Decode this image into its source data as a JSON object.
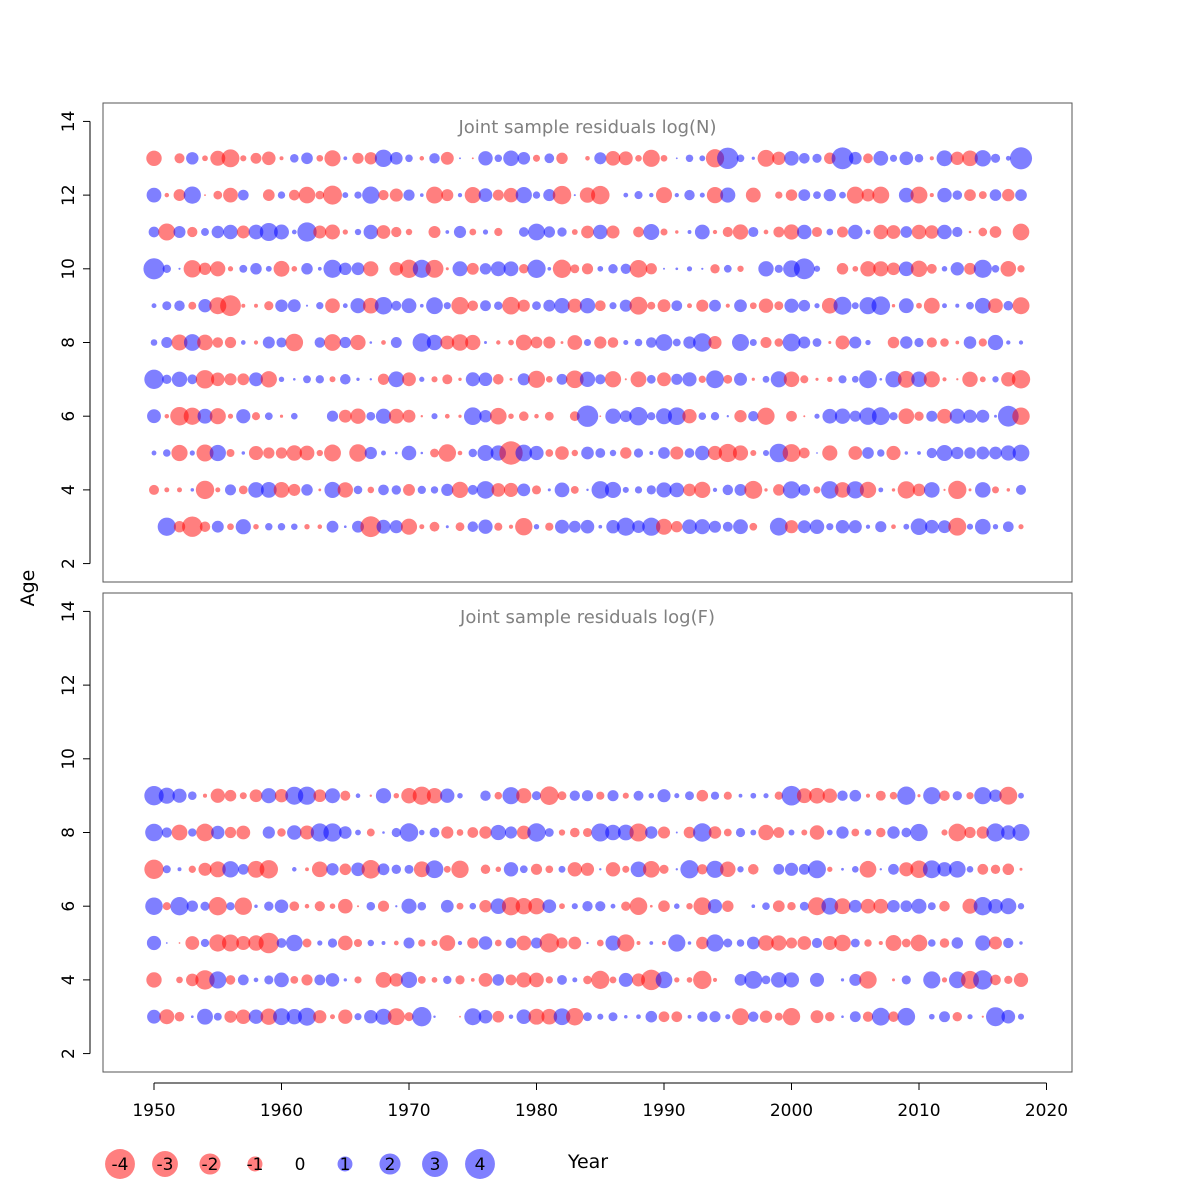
{
  "chart_data": [
    {
      "type": "scatter",
      "variant": "bubble",
      "title": "Joint sample residuals log(N)",
      "xlabel": "",
      "ylabel": "",
      "xlim": [
        1946,
        2022
      ],
      "ylim": [
        1.5,
        14.5
      ],
      "x_ticks": [
        1950,
        1960,
        1970,
        1980,
        1990,
        2000,
        2010,
        2020
      ],
      "y_ticks": [
        2,
        4,
        6,
        8,
        10,
        12,
        14
      ],
      "y_tick_labels": [
        "2",
        "4",
        "6",
        "8",
        "10",
        "12",
        "14"
      ],
      "ages": [
        3,
        4,
        5,
        6,
        7,
        8,
        9,
        10,
        11,
        12,
        13
      ],
      "years": [
        1950,
        2018
      ],
      "seed": 7,
      "size_encodes": "absolute residual",
      "color_encodes": "sign of residual",
      "notable_points": [
        {
          "x": 1950,
          "y": 10,
          "value": 3.1
        },
        {
          "x": 1950,
          "y": 7,
          "value": 2.6
        },
        {
          "x": 1953,
          "y": 3,
          "value": -2.9
        },
        {
          "x": 1956,
          "y": 9,
          "value": -3.0
        },
        {
          "x": 1962,
          "y": 11,
          "value": 2.6
        },
        {
          "x": 1964,
          "y": 12,
          "value": -2.5
        },
        {
          "x": 1967,
          "y": 3,
          "value": -3.0
        },
        {
          "x": 1978,
          "y": 5,
          "value": -3.8
        },
        {
          "x": 1984,
          "y": 6,
          "value": 3.2
        },
        {
          "x": 1995,
          "y": 13,
          "value": 3.2
        },
        {
          "x": 2001,
          "y": 10,
          "value": 3.0
        },
        {
          "x": 2004,
          "y": 13,
          "value": 3.3
        },
        {
          "x": 2017,
          "y": 6,
          "value": 3.0
        },
        {
          "x": 2018,
          "y": 13,
          "value": 3.4
        }
      ]
    },
    {
      "type": "scatter",
      "variant": "bubble",
      "title": "Joint sample residuals log(F)",
      "xlabel": "Year",
      "ylabel": "",
      "xlim": [
        1946,
        2022
      ],
      "ylim": [
        1.5,
        14.5
      ],
      "x_ticks": [
        1950,
        1960,
        1970,
        1980,
        1990,
        2000,
        2010,
        2020
      ],
      "x_tick_labels": [
        "1950",
        "1960",
        "1970",
        "1980",
        "1990",
        "2000",
        "2010",
        "2020"
      ],
      "y_ticks": [
        2,
        4,
        6,
        8,
        10,
        12,
        14
      ],
      "y_tick_labels": [
        "2",
        "4",
        "6",
        "8",
        "10",
        "12",
        "14"
      ],
      "ages": [
        3,
        4,
        5,
        6,
        7,
        8,
        9
      ],
      "years": [
        1950,
        2018
      ],
      "seed": 31,
      "size_encodes": "absolute residual",
      "color_encodes": "sign of residual",
      "notable_points": [
        {
          "x": 1950,
          "y": 9,
          "value": 2.6
        },
        {
          "x": 1950,
          "y": 7,
          "value": -2.6
        },
        {
          "x": 1954,
          "y": 4,
          "value": -2.6
        },
        {
          "x": 1959,
          "y": 5,
          "value": -2.9
        },
        {
          "x": 1971,
          "y": 3,
          "value": 2.6
        },
        {
          "x": 1981,
          "y": 5,
          "value": -2.6
        },
        {
          "x": 1989,
          "y": 4,
          "value": -2.9
        },
        {
          "x": 2000,
          "y": 9,
          "value": 2.7
        },
        {
          "x": 2015,
          "y": 4,
          "value": 2.6
        },
        {
          "x": 2016,
          "y": 3,
          "value": 2.5
        }
      ]
    }
  ],
  "shared_ylabel": "Age",
  "legend": {
    "items": [
      {
        "label": "-4",
        "value": -4
      },
      {
        "label": "-3",
        "value": -3
      },
      {
        "label": "-2",
        "value": -2
      },
      {
        "label": "-1",
        "value": -1
      },
      {
        "label": "0",
        "value": 0
      },
      {
        "label": "1",
        "value": 1
      },
      {
        "label": "2",
        "value": 2
      },
      {
        "label": "3",
        "value": 3
      },
      {
        "label": "4",
        "value": 4
      }
    ],
    "placement": "bottom-left"
  },
  "colors": {
    "negative": "#ff0000",
    "positive": "#0000ff",
    "fill_opacity": 0.5,
    "axis": "#000000",
    "frame": "#555555",
    "title_text": "#808080"
  }
}
